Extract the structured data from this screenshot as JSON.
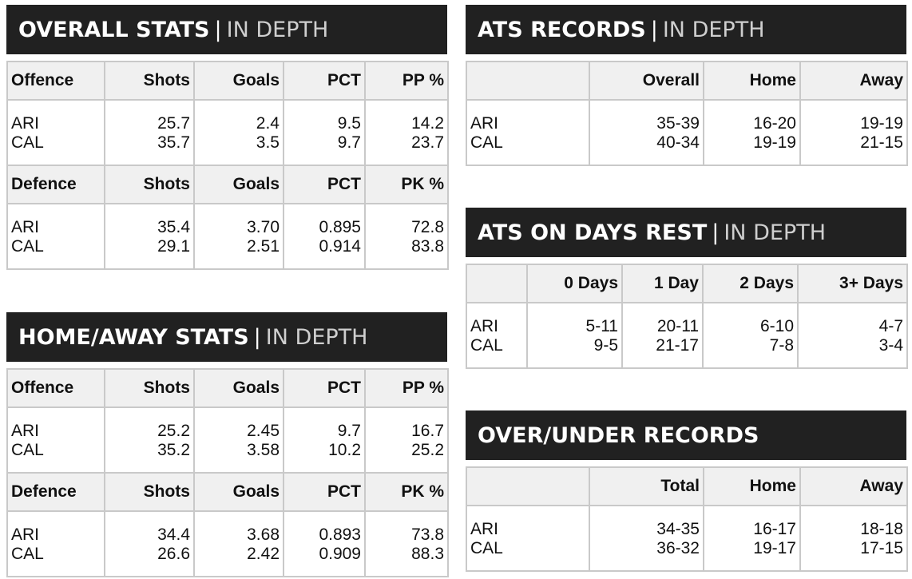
{
  "overall": {
    "title": "OVERALL STATS",
    "sep": "|",
    "subtitle": "IN DEPTH",
    "offence_header": [
      "Offence",
      "Shots",
      "Goals",
      "PCT",
      "PP %"
    ],
    "offence_rows": [
      [
        "ARI",
        "25.7",
        "2.4",
        "9.5",
        "14.2"
      ],
      [
        "CAL",
        "35.7",
        "3.5",
        "9.7",
        "23.7"
      ]
    ],
    "defence_header": [
      "Defence",
      "Shots",
      "Goals",
      "PCT",
      "PK %"
    ],
    "defence_rows": [
      [
        "ARI",
        "35.4",
        "3.70",
        "0.895",
        "72.8"
      ],
      [
        "CAL",
        "29.1",
        "2.51",
        "0.914",
        "83.8"
      ]
    ]
  },
  "homeaway": {
    "title": "HOME/AWAY STATS",
    "sep": "|",
    "subtitle": "IN DEPTH",
    "offence_header": [
      "Offence",
      "Shots",
      "Goals",
      "PCT",
      "PP %"
    ],
    "offence_rows": [
      [
        "ARI",
        "25.2",
        "2.45",
        "9.7",
        "16.7"
      ],
      [
        "CAL",
        "35.2",
        "3.58",
        "10.2",
        "25.2"
      ]
    ],
    "defence_header": [
      "Defence",
      "Shots",
      "Goals",
      "PCT",
      "PK %"
    ],
    "defence_rows": [
      [
        "ARI",
        "34.4",
        "3.68",
        "0.893",
        "73.8"
      ],
      [
        "CAL",
        "26.6",
        "2.42",
        "0.909",
        "88.3"
      ]
    ]
  },
  "ats": {
    "title": "ATS RECORDS",
    "sep": "|",
    "subtitle": "IN DEPTH",
    "header": [
      "",
      "Overall",
      "Home",
      "Away"
    ],
    "rows": [
      [
        "ARI",
        "35-39",
        "16-20",
        "19-19"
      ],
      [
        "CAL",
        "40-34",
        "19-19",
        "21-15"
      ]
    ]
  },
  "rest": {
    "title": "ATS ON DAYS REST",
    "sep": "|",
    "subtitle": "IN DEPTH",
    "header": [
      "",
      "0 Days",
      "1 Day",
      "2 Days",
      "3+ Days"
    ],
    "rows": [
      [
        "ARI",
        "5-11",
        "20-11",
        "6-10",
        "4-7"
      ],
      [
        "CAL",
        "9-5",
        "21-17",
        "7-8",
        "3-4"
      ]
    ]
  },
  "ou": {
    "title": "OVER/UNDER RECORDS",
    "header": [
      "",
      "Total",
      "Home",
      "Away"
    ],
    "rows": [
      [
        "ARI",
        "34-35",
        "16-17",
        "18-18"
      ],
      [
        "CAL",
        "36-32",
        "19-17",
        "17-15"
      ]
    ]
  }
}
